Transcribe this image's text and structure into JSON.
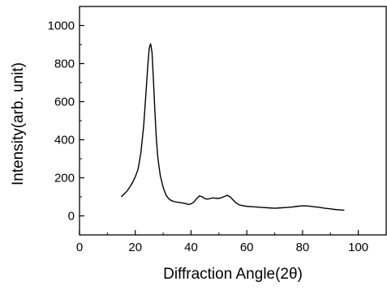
{
  "chart_data": {
    "type": "line",
    "title": "",
    "xlabel": "Diffraction Angle(2θ)",
    "ylabel": "Intensity(arb. unit)",
    "xlim": [
      0,
      110
    ],
    "ylim": [
      -100,
      1100
    ],
    "x_ticks": [
      "0",
      "20",
      "40",
      "60",
      "80",
      "100"
    ],
    "y_ticks": [
      "0",
      "200",
      "400",
      "600",
      "800",
      "1000"
    ],
    "grid": false,
    "legend": "none",
    "line_color": "#000000",
    "series": [
      {
        "x": [
          15,
          16,
          17,
          18,
          19,
          20,
          21,
          22,
          23,
          24,
          24.5,
          25,
          25.5,
          26,
          26.5,
          27,
          27.5,
          28,
          28.5,
          29,
          30,
          31,
          32,
          33,
          34,
          35,
          36,
          37,
          38,
          39,
          40,
          41,
          42,
          43,
          44,
          45,
          46,
          47,
          48,
          49,
          50,
          51,
          52,
          53,
          54,
          55,
          56,
          57,
          58,
          60,
          62,
          64,
          66,
          68,
          70,
          72,
          74,
          76,
          78,
          80,
          82,
          84,
          86,
          88,
          90,
          92,
          94,
          95
        ],
        "y": [
          100,
          115,
          130,
          150,
          175,
          205,
          245,
          330,
          470,
          680,
          790,
          880,
          905,
          860,
          720,
          560,
          420,
          320,
          260,
          210,
          150,
          110,
          90,
          80,
          75,
          72,
          70,
          68,
          65,
          60,
          63,
          72,
          90,
          105,
          100,
          90,
          88,
          92,
          95,
          92,
          92,
          96,
          102,
          108,
          100,
          85,
          70,
          60,
          55,
          50,
          48,
          46,
          44,
          42,
          40,
          42,
          44,
          46,
          50,
          53,
          52,
          48,
          45,
          40,
          37,
          33,
          31,
          30
        ]
      }
    ]
  }
}
